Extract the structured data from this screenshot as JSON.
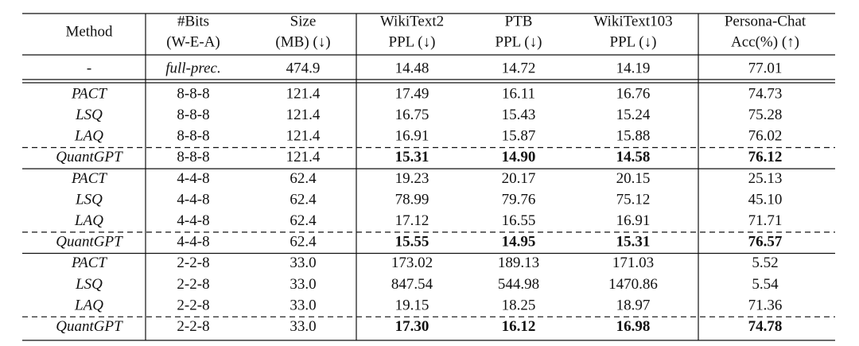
{
  "table": {
    "header": [
      [
        "Method"
      ],
      [
        "#Bits",
        "(W-E-A)"
      ],
      [
        "Size",
        "(MB) (↓)"
      ],
      [
        "WikiText2",
        "PPL (↓)"
      ],
      [
        "PTB",
        "PPL (↓)"
      ],
      [
        "WikiText103",
        "PPL (↓)"
      ],
      [
        "Persona-Chat",
        "Acc(%) (↑)"
      ]
    ],
    "groups": [
      {
        "rows": [
          [
            "-",
            "full-prec.",
            "474.9",
            "14.48",
            "14.72",
            "14.19",
            "77.01"
          ]
        ]
      },
      {
        "rows": [
          [
            "PACT",
            "8-8-8",
            "121.4",
            "17.49",
            "16.11",
            "16.76",
            "74.73"
          ],
          [
            "LSQ",
            "8-8-8",
            "121.4",
            "16.75",
            "15.43",
            "15.24",
            "75.28"
          ],
          [
            "LAQ",
            "8-8-8",
            "121.4",
            "16.91",
            "15.87",
            "15.88",
            "76.02"
          ],
          [
            "QuantGPT",
            "8-8-8",
            "121.4",
            "15.31",
            "14.90",
            "14.58",
            "76.12"
          ]
        ]
      },
      {
        "rows": [
          [
            "PACT",
            "4-4-8",
            "62.4",
            "19.23",
            "20.17",
            "20.15",
            "25.13"
          ],
          [
            "LSQ",
            "4-4-8",
            "62.4",
            "78.99",
            "79.76",
            "75.12",
            "45.10"
          ],
          [
            "LAQ",
            "4-4-8",
            "62.4",
            "17.12",
            "16.55",
            "16.91",
            "71.71"
          ],
          [
            "QuantGPT",
            "4-4-8",
            "62.4",
            "15.55",
            "14.95",
            "15.31",
            "76.57"
          ]
        ]
      },
      {
        "rows": [
          [
            "PACT",
            "2-2-8",
            "33.0",
            "173.02",
            "189.13",
            "171.03",
            "5.52"
          ],
          [
            "LSQ",
            "2-2-8",
            "33.0",
            "847.54",
            "544.98",
            "1470.86",
            "5.54"
          ],
          [
            "LAQ",
            "2-2-8",
            "33.0",
            "19.15",
            "18.25",
            "18.97",
            "71.36"
          ],
          [
            "QuantGPT",
            "2-2-8",
            "33.0",
            "17.30",
            "16.12",
            "16.98",
            "74.78"
          ]
        ]
      }
    ]
  }
}
